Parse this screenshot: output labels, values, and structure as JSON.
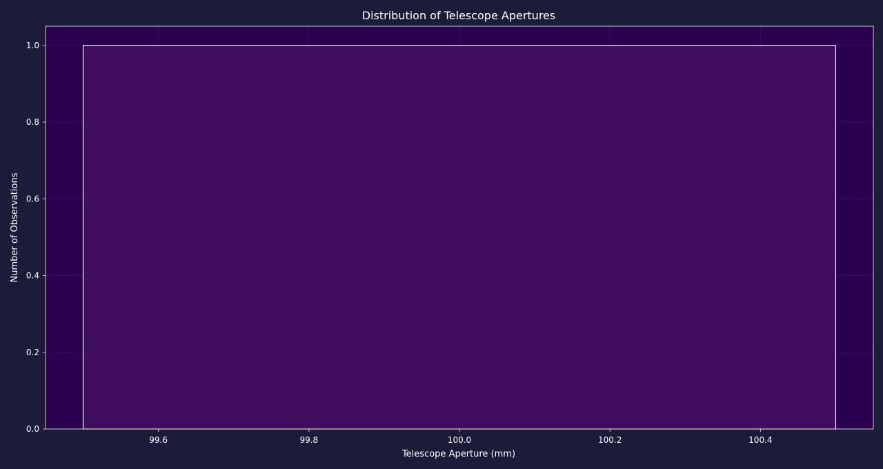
{
  "chart_data": {
    "type": "bar",
    "title": "Distribution of Telescope Apertures",
    "xlabel": "Telescope Aperture (mm)",
    "ylabel": "Number of Observations",
    "bins": [
      {
        "x_start": 99.5,
        "x_end": 100.5,
        "value": 1
      }
    ],
    "xlim": [
      99.45,
      100.55
    ],
    "ylim": [
      0,
      1.05
    ],
    "x_ticks": [
      {
        "value": 99.6,
        "label": "99.6"
      },
      {
        "value": 99.8,
        "label": "99.8"
      },
      {
        "value": 100.0,
        "label": "100.0"
      },
      {
        "value": 100.2,
        "label": "100.2"
      },
      {
        "value": 100.4,
        "label": "100.4"
      }
    ],
    "y_ticks": [
      {
        "value": 0.0,
        "label": "0.0"
      },
      {
        "value": 0.2,
        "label": "0.2"
      },
      {
        "value": 0.4,
        "label": "0.4"
      },
      {
        "value": 0.6,
        "label": "0.6"
      },
      {
        "value": 0.8,
        "label": "0.8"
      },
      {
        "value": 1.0,
        "label": "1.0"
      }
    ],
    "grid": true,
    "colors": {
      "page_background": "#1c1c3a",
      "plot_background": "#2a0050",
      "bar_fill": "#420e60",
      "bar_edge": "#ffffff",
      "grid": "#3d1a66",
      "text": "#ffffff"
    }
  }
}
